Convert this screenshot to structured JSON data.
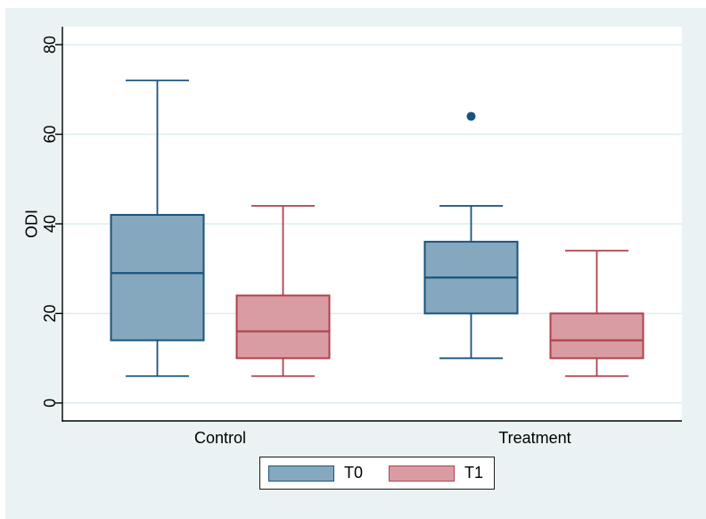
{
  "figure": {
    "background_color": "#eaf2f3",
    "plot_background": "#ffffff",
    "gridline_color": "#dcedf0",
    "axis_color": "#000000"
  },
  "chart_data": {
    "type": "boxplot",
    "title": "",
    "xlabel": "",
    "ylabel": "ODI",
    "categories": [
      "Control",
      "Treatment"
    ],
    "yticks": [
      "0",
      "20",
      "40",
      "60",
      "80"
    ],
    "ytick_values": [
      0,
      20,
      40,
      60,
      80
    ],
    "ylim": [
      -4,
      84
    ],
    "grid": true,
    "legend_position": "bottom-center",
    "series": [
      {
        "name": "T0",
        "fill": "#85a8be",
        "stroke": "#17537e",
        "boxes": [
          {
            "category": "Control",
            "min": 6,
            "q1": 14,
            "median": 29,
            "q3": 42,
            "max": 72,
            "outliers": []
          },
          {
            "category": "Treatment",
            "min": 10,
            "q1": 20,
            "median": 28,
            "q3": 36,
            "max": 44,
            "outliers": [
              64
            ]
          }
        ]
      },
      {
        "name": "T1",
        "fill": "#d99ca3",
        "stroke": "#b0414b",
        "boxes": [
          {
            "category": "Control",
            "min": 6,
            "q1": 10,
            "median": 16,
            "q3": 24,
            "max": 44,
            "outliers": []
          },
          {
            "category": "Treatment",
            "min": 6,
            "q1": 10,
            "median": 14,
            "q3": 20,
            "max": 34,
            "outliers": []
          }
        ]
      }
    ]
  }
}
